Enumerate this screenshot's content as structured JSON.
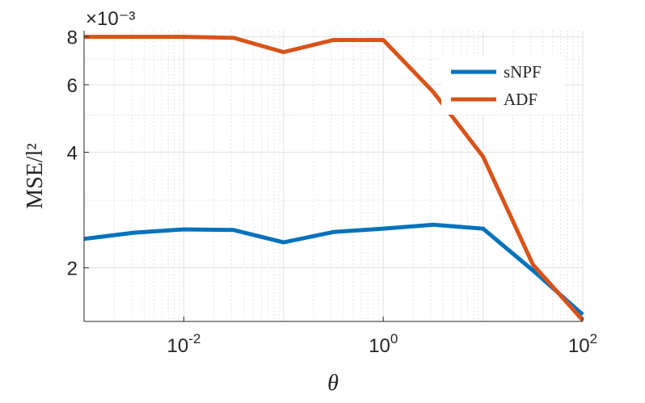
{
  "chart_data": {
    "type": "line",
    "xscale": "log",
    "yscale": "log",
    "xlabel": "θ",
    "ylabel": "MSE/l²",
    "y_multiplier": "×10⁻³",
    "xlim": [
      0.001,
      100
    ],
    "ylim": [
      1.45,
      8.3
    ],
    "grid": true,
    "legend_position": "top-right",
    "x_ticks": [
      {
        "value": 0.01,
        "base": "10",
        "exp": "-2"
      },
      {
        "value": 1,
        "base": "10",
        "exp": "0"
      },
      {
        "value": 100,
        "base": "10",
        "exp": "2"
      }
    ],
    "y_ticks": [
      {
        "value": 2,
        "label": "2"
      },
      {
        "value": 4,
        "label": "4"
      },
      {
        "value": 6,
        "label": "6"
      },
      {
        "value": 8,
        "label": "8"
      }
    ],
    "x": [
      0.001,
      0.00316,
      0.01,
      0.0316,
      0.1,
      0.316,
      1,
      3.16,
      10,
      31.6,
      100
    ],
    "series": [
      {
        "name": "sNPF",
        "color": "#0072BD",
        "values": [
          2.38,
          2.47,
          2.52,
          2.51,
          2.33,
          2.48,
          2.53,
          2.59,
          2.53,
          1.97,
          1.51
        ]
      },
      {
        "name": "ADF",
        "color": "#D95319",
        "values": [
          8.0,
          8.0,
          8.0,
          7.95,
          7.3,
          7.85,
          7.85,
          5.75,
          3.9,
          2.04,
          1.46
        ]
      }
    ]
  }
}
